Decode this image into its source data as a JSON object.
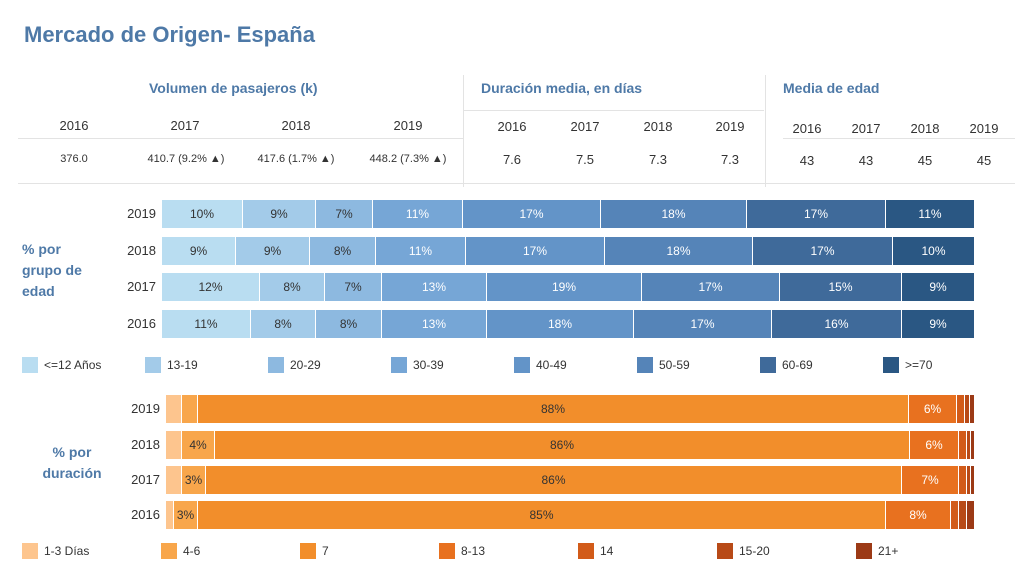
{
  "title": "Mercado de Origen- España",
  "headers": {
    "volumen": "Volumen de pasajeros (k)",
    "duracion": "Duración media, en días",
    "edad": "Media de edad"
  },
  "volumen": {
    "years": [
      "2016",
      "2017",
      "2018",
      "2019"
    ],
    "values": [
      "376.0",
      "410.7 (9.2% ▲)",
      "417.6 (1.7% ▲)",
      "448.2 (7.3% ▲)"
    ]
  },
  "duracion": {
    "years": [
      "2016",
      "2017",
      "2018",
      "2019"
    ],
    "values": [
      "7.6",
      "7.5",
      "7.3",
      "7.3"
    ]
  },
  "edad": {
    "years": [
      "2016",
      "2017",
      "2018",
      "2019"
    ],
    "values": [
      "43",
      "43",
      "45",
      "45"
    ]
  },
  "chart_data": [
    {
      "type": "bar",
      "orientation": "horizontal",
      "stacked": "100%",
      "title": "% por grupo de edad",
      "categories": [
        "2019",
        "2018",
        "2017",
        "2016"
      ],
      "series": [
        {
          "name": "<=12 Años",
          "color": "#b9ddf1",
          "values": [
            10,
            9,
            12,
            11
          ]
        },
        {
          "name": "13-19",
          "color": "#a3cbe9",
          "values": [
            9,
            9,
            8,
            8
          ]
        },
        {
          "name": "20-29",
          "color": "#8db9e0",
          "values": [
            7,
            8,
            7,
            8
          ]
        },
        {
          "name": "30-39",
          "color": "#76a6d6",
          "values": [
            11,
            11,
            13,
            13
          ]
        },
        {
          "name": "40-49",
          "color": "#6394c8",
          "values": [
            17,
            17,
            19,
            18
          ]
        },
        {
          "name": "50-59",
          "color": "#5584b8",
          "values": [
            18,
            18,
            17,
            17
          ]
        },
        {
          "name": "60-69",
          "color": "#3f6a9a",
          "values": [
            17,
            17,
            15,
            16
          ]
        },
        {
          "name": ">=70",
          "color": "#2a5783",
          "values": [
            11,
            10,
            9,
            9
          ]
        }
      ]
    },
    {
      "type": "bar",
      "orientation": "horizontal",
      "stacked": "100%",
      "title": "% por duración",
      "categories": [
        "2019",
        "2018",
        "2017",
        "2016"
      ],
      "series": [
        {
          "name": "1-3 Días",
          "color": "#fdc58e",
          "values": [
            2,
            2,
            2,
            1
          ],
          "labels": [
            "",
            "",
            "",
            ""
          ]
        },
        {
          "name": "4-6",
          "color": "#f8a64b",
          "values": [
            2,
            4,
            3,
            3
          ],
          "labels": [
            "",
            "4%",
            "3%",
            "3%"
          ]
        },
        {
          "name": "7",
          "color": "#f28e2b",
          "values": [
            88,
            86,
            86,
            85
          ],
          "labels": [
            "88%",
            "86%",
            "86%",
            "85%"
          ]
        },
        {
          "name": "8-13",
          "color": "#e8711f",
          "values": [
            6,
            6,
            7,
            8
          ],
          "labels": [
            "6%",
            "6%",
            "7%",
            "8%"
          ]
        },
        {
          "name": "14",
          "color": "#d25b19",
          "values": [
            1,
            1,
            1,
            1
          ],
          "labels": [
            "",
            "",
            "",
            ""
          ]
        },
        {
          "name": "15-20",
          "color": "#b84a17",
          "values": [
            0.6,
            0.5,
            0.5,
            1
          ],
          "labels": [
            "",
            "",
            "",
            ""
          ]
        },
        {
          "name": "21+",
          "color": "#9c3a16",
          "values": [
            0.6,
            0.5,
            0.5,
            1
          ],
          "labels": [
            "",
            "",
            "",
            ""
          ]
        }
      ]
    }
  ]
}
